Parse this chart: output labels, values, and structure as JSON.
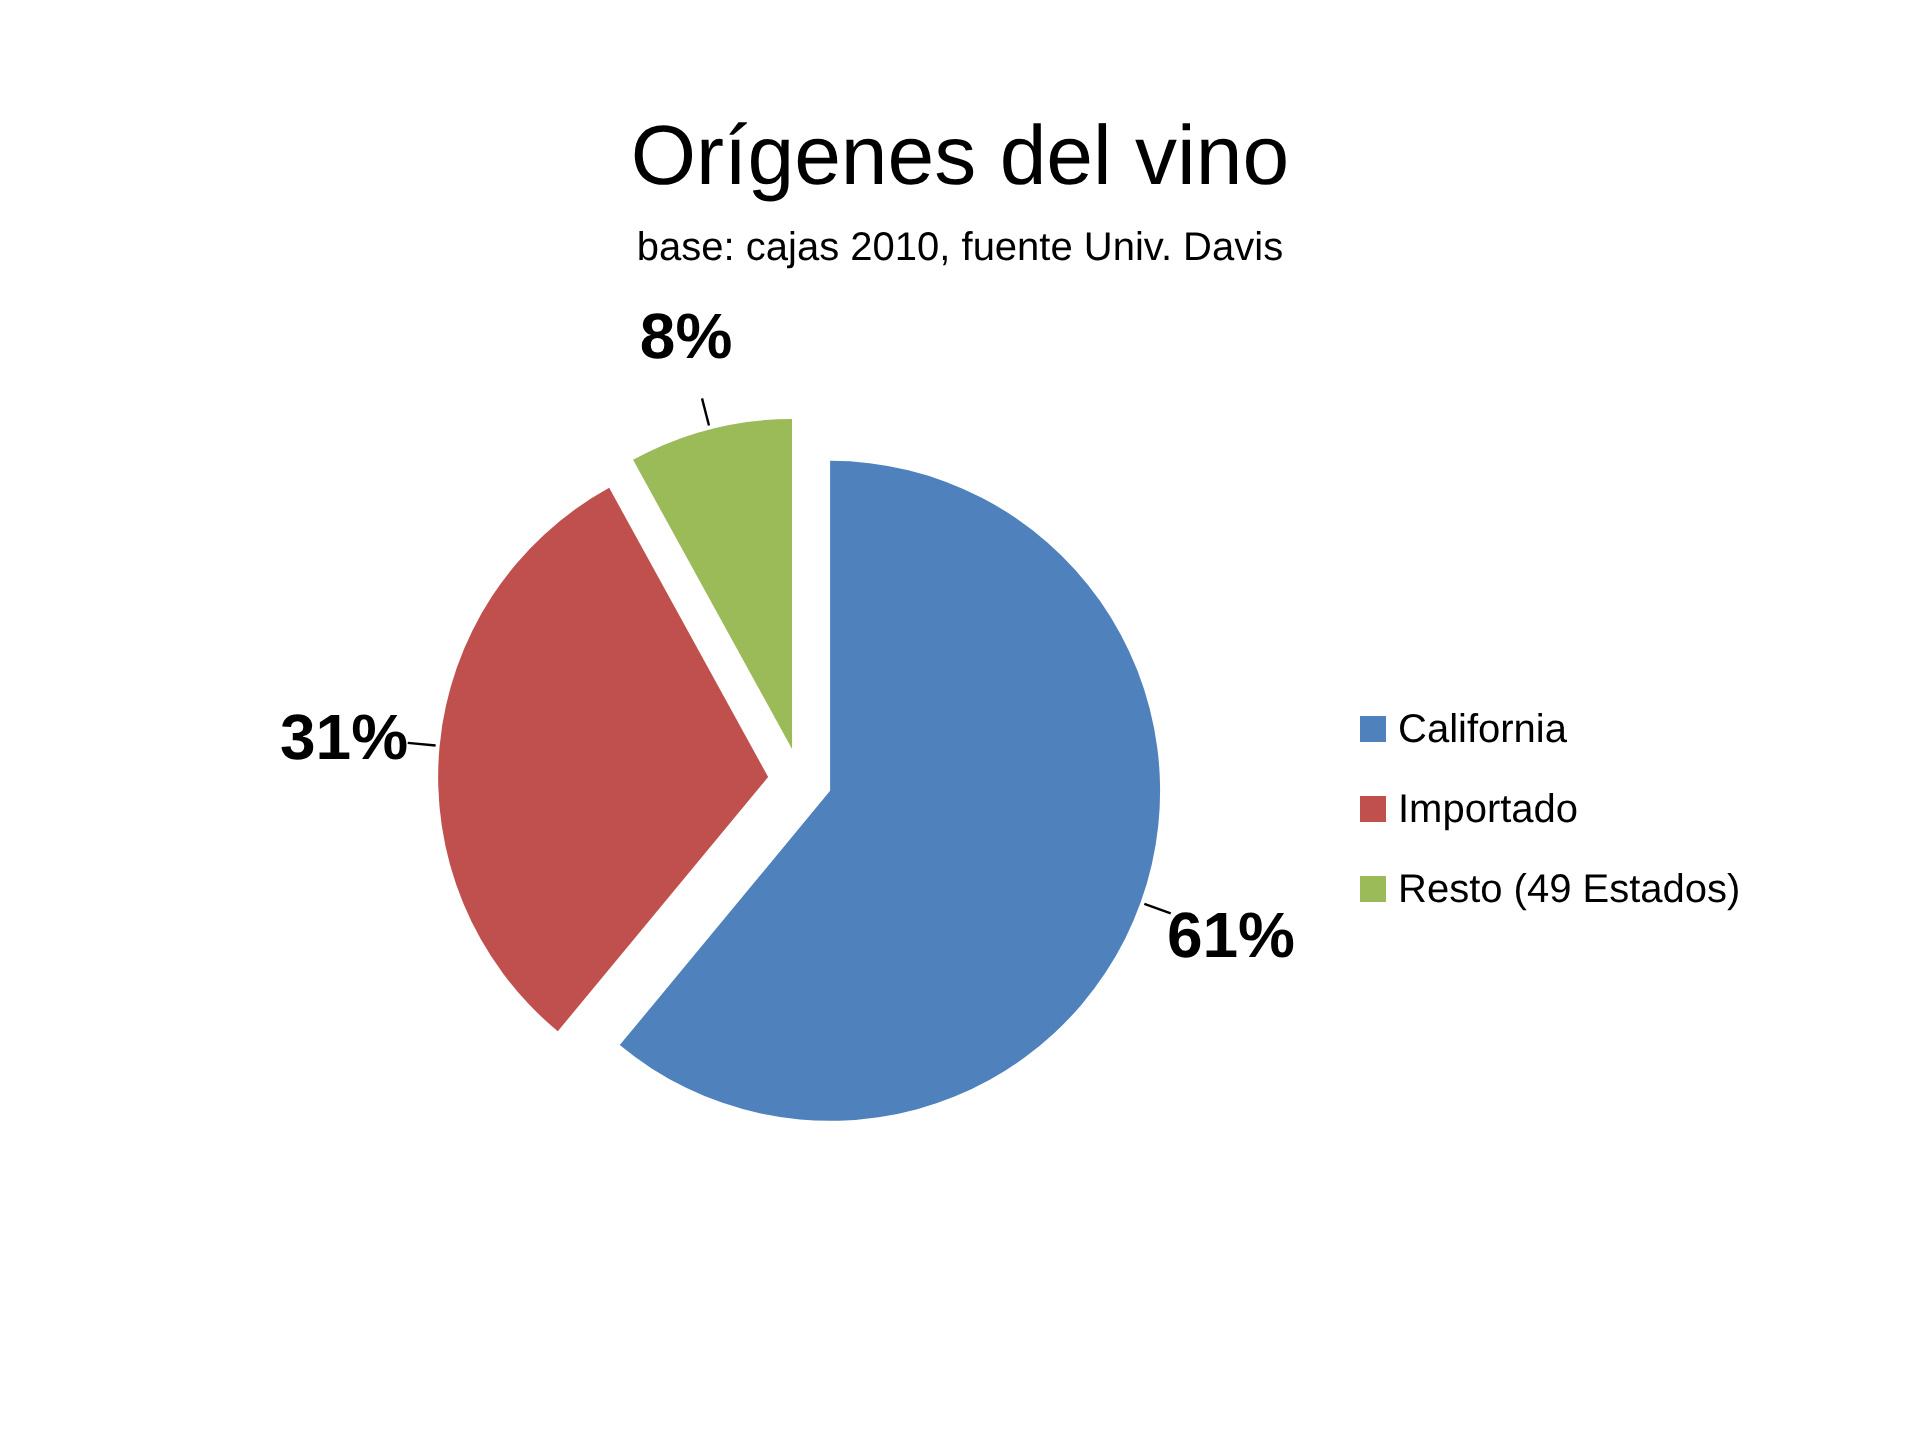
{
  "chart_data": {
    "type": "pie",
    "title": "Orígenes del vino",
    "subtitle": "base: cajas 2010, fuente Univ. Davis",
    "categories": [
      "California",
      "Importado",
      "Resto (49 Estados)"
    ],
    "values": [
      61,
      31,
      8
    ],
    "colors": [
      "#4f81bd",
      "#c0504d",
      "#9bbb59"
    ],
    "value_labels": [
      "61%",
      "31%",
      "8%"
    ],
    "legend": "right"
  }
}
